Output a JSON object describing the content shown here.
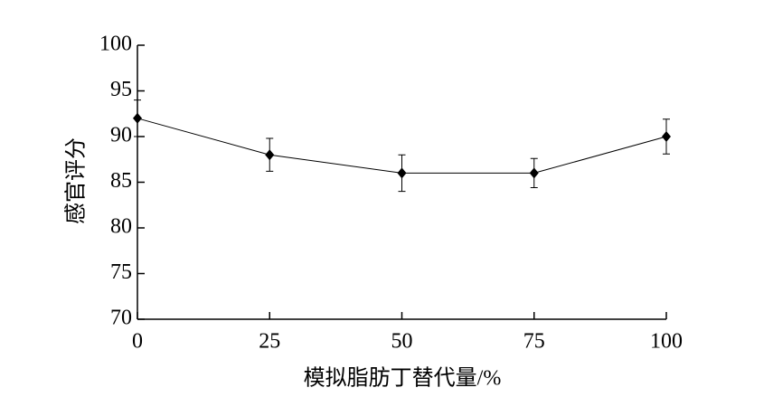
{
  "chart_data": {
    "type": "line",
    "x_label": "模拟脂肪丁替代量/%",
    "y_label": "感官评分",
    "x": [
      0,
      25,
      50,
      75,
      100
    ],
    "series": [
      {
        "values": [
          92,
          88,
          86,
          86,
          90
        ],
        "errors": [
          2,
          1.8,
          2,
          1.6,
          1.9
        ],
        "color": "#000000"
      }
    ],
    "xlim": [
      0,
      100
    ],
    "xticks": [
      0,
      25,
      50,
      75,
      100
    ],
    "ylim": [
      70,
      100
    ],
    "yticks": [
      70,
      75,
      80,
      85,
      90,
      95,
      100
    ],
    "grid": false
  }
}
